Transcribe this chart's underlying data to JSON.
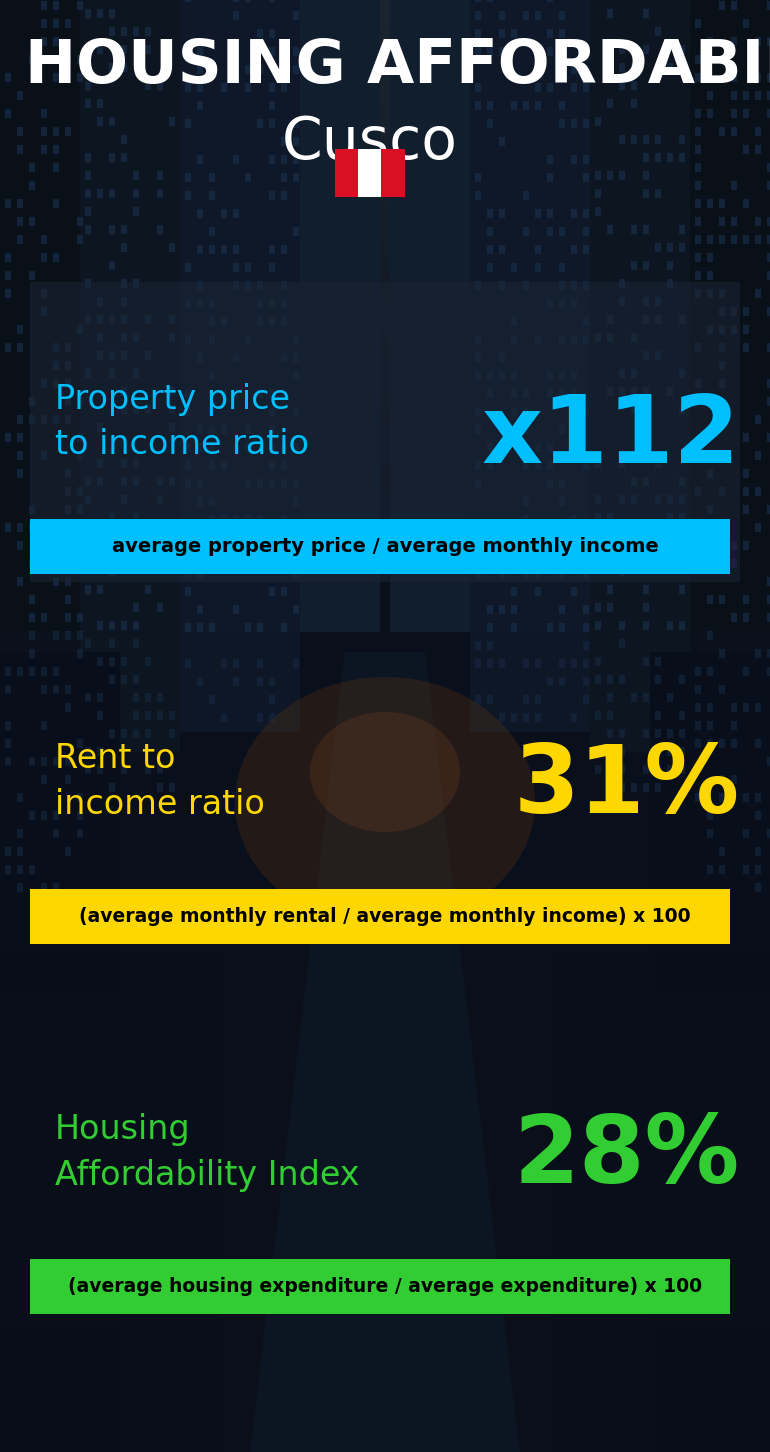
{
  "title_line1": "HOUSING AFFORDABILITY",
  "title_line2": "Cusco",
  "section1_label": "Property price\nto income ratio",
  "section1_value": "x112",
  "section1_sublabel": "average property price / average monthly income",
  "section1_label_color": "#00BFFF",
  "section1_value_color": "#00BFFF",
  "section1_bar_color": "#00BFFF",
  "section2_label": "Rent to\nincome ratio",
  "section2_value": "31%",
  "section2_sublabel": "(average monthly rental / average monthly income) x 100",
  "section2_label_color": "#FFD700",
  "section2_value_color": "#FFD700",
  "section2_bar_color": "#FFD700",
  "section3_label": "Housing\nAffordability Index",
  "section3_value": "28%",
  "section3_sublabel": "(average housing expenditure / average expenditure) x 100",
  "section3_label_color": "#32CD32",
  "section3_value_color": "#32CD32",
  "section3_bar_color": "#32CD32",
  "bg_dark": "#0a0f1a",
  "title_color": "#FFFFFF",
  "subtitle_color": "#FFFFFF",
  "sublabel_text_color": "#000000",
  "panel_color": "#1a2535",
  "fig_width": 7.7,
  "fig_height": 14.52,
  "dpi": 100
}
